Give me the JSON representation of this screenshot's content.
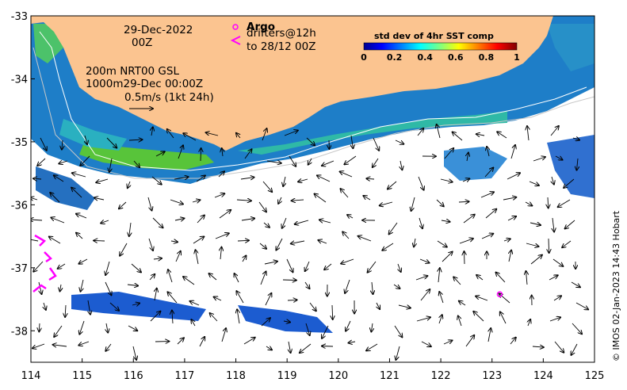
{
  "map": {
    "date_line1": "29-Dec-2022",
    "date_line2": "00Z",
    "argo_label": "Argo",
    "drifters_line1": "drifters@12h",
    "drifters_line2": "to 28/12 00Z",
    "contour_line1": "200m  NRT00 GSL",
    "contour_line2": "1000m29-Dec 00:00Z",
    "scale_label": "0.5m/s (1kt 24h)",
    "credit": "© IMOS 02-Jan-2023 14:43 Hobart",
    "x_axis": {
      "ticks": [
        "114",
        "115",
        "116",
        "117",
        "118",
        "119",
        "120",
        "121",
        "122",
        "123",
        "124",
        "125"
      ],
      "range": [
        114,
        125
      ]
    },
    "y_axis": {
      "ticks": [
        "-33",
        "-34",
        "-35",
        "-36",
        "-37",
        "-38"
      ],
      "range": [
        -38.5,
        -33
      ]
    },
    "colorbar": {
      "title": "std dev of 4hr SST comp",
      "ticks": [
        "0",
        "0.2",
        "0.4",
        "0.6",
        "0.8",
        "1"
      ],
      "range": [
        0,
        1
      ]
    },
    "colors": {
      "land": "#fbc490",
      "ocean": "#ffffff",
      "argo_marker": "#ff00ff",
      "drifter": "#ff00ff",
      "contour": "#c8c8c8"
    },
    "argo_floats": [
      {
        "lon": 123.15,
        "lat": -37.42
      }
    ]
  }
}
